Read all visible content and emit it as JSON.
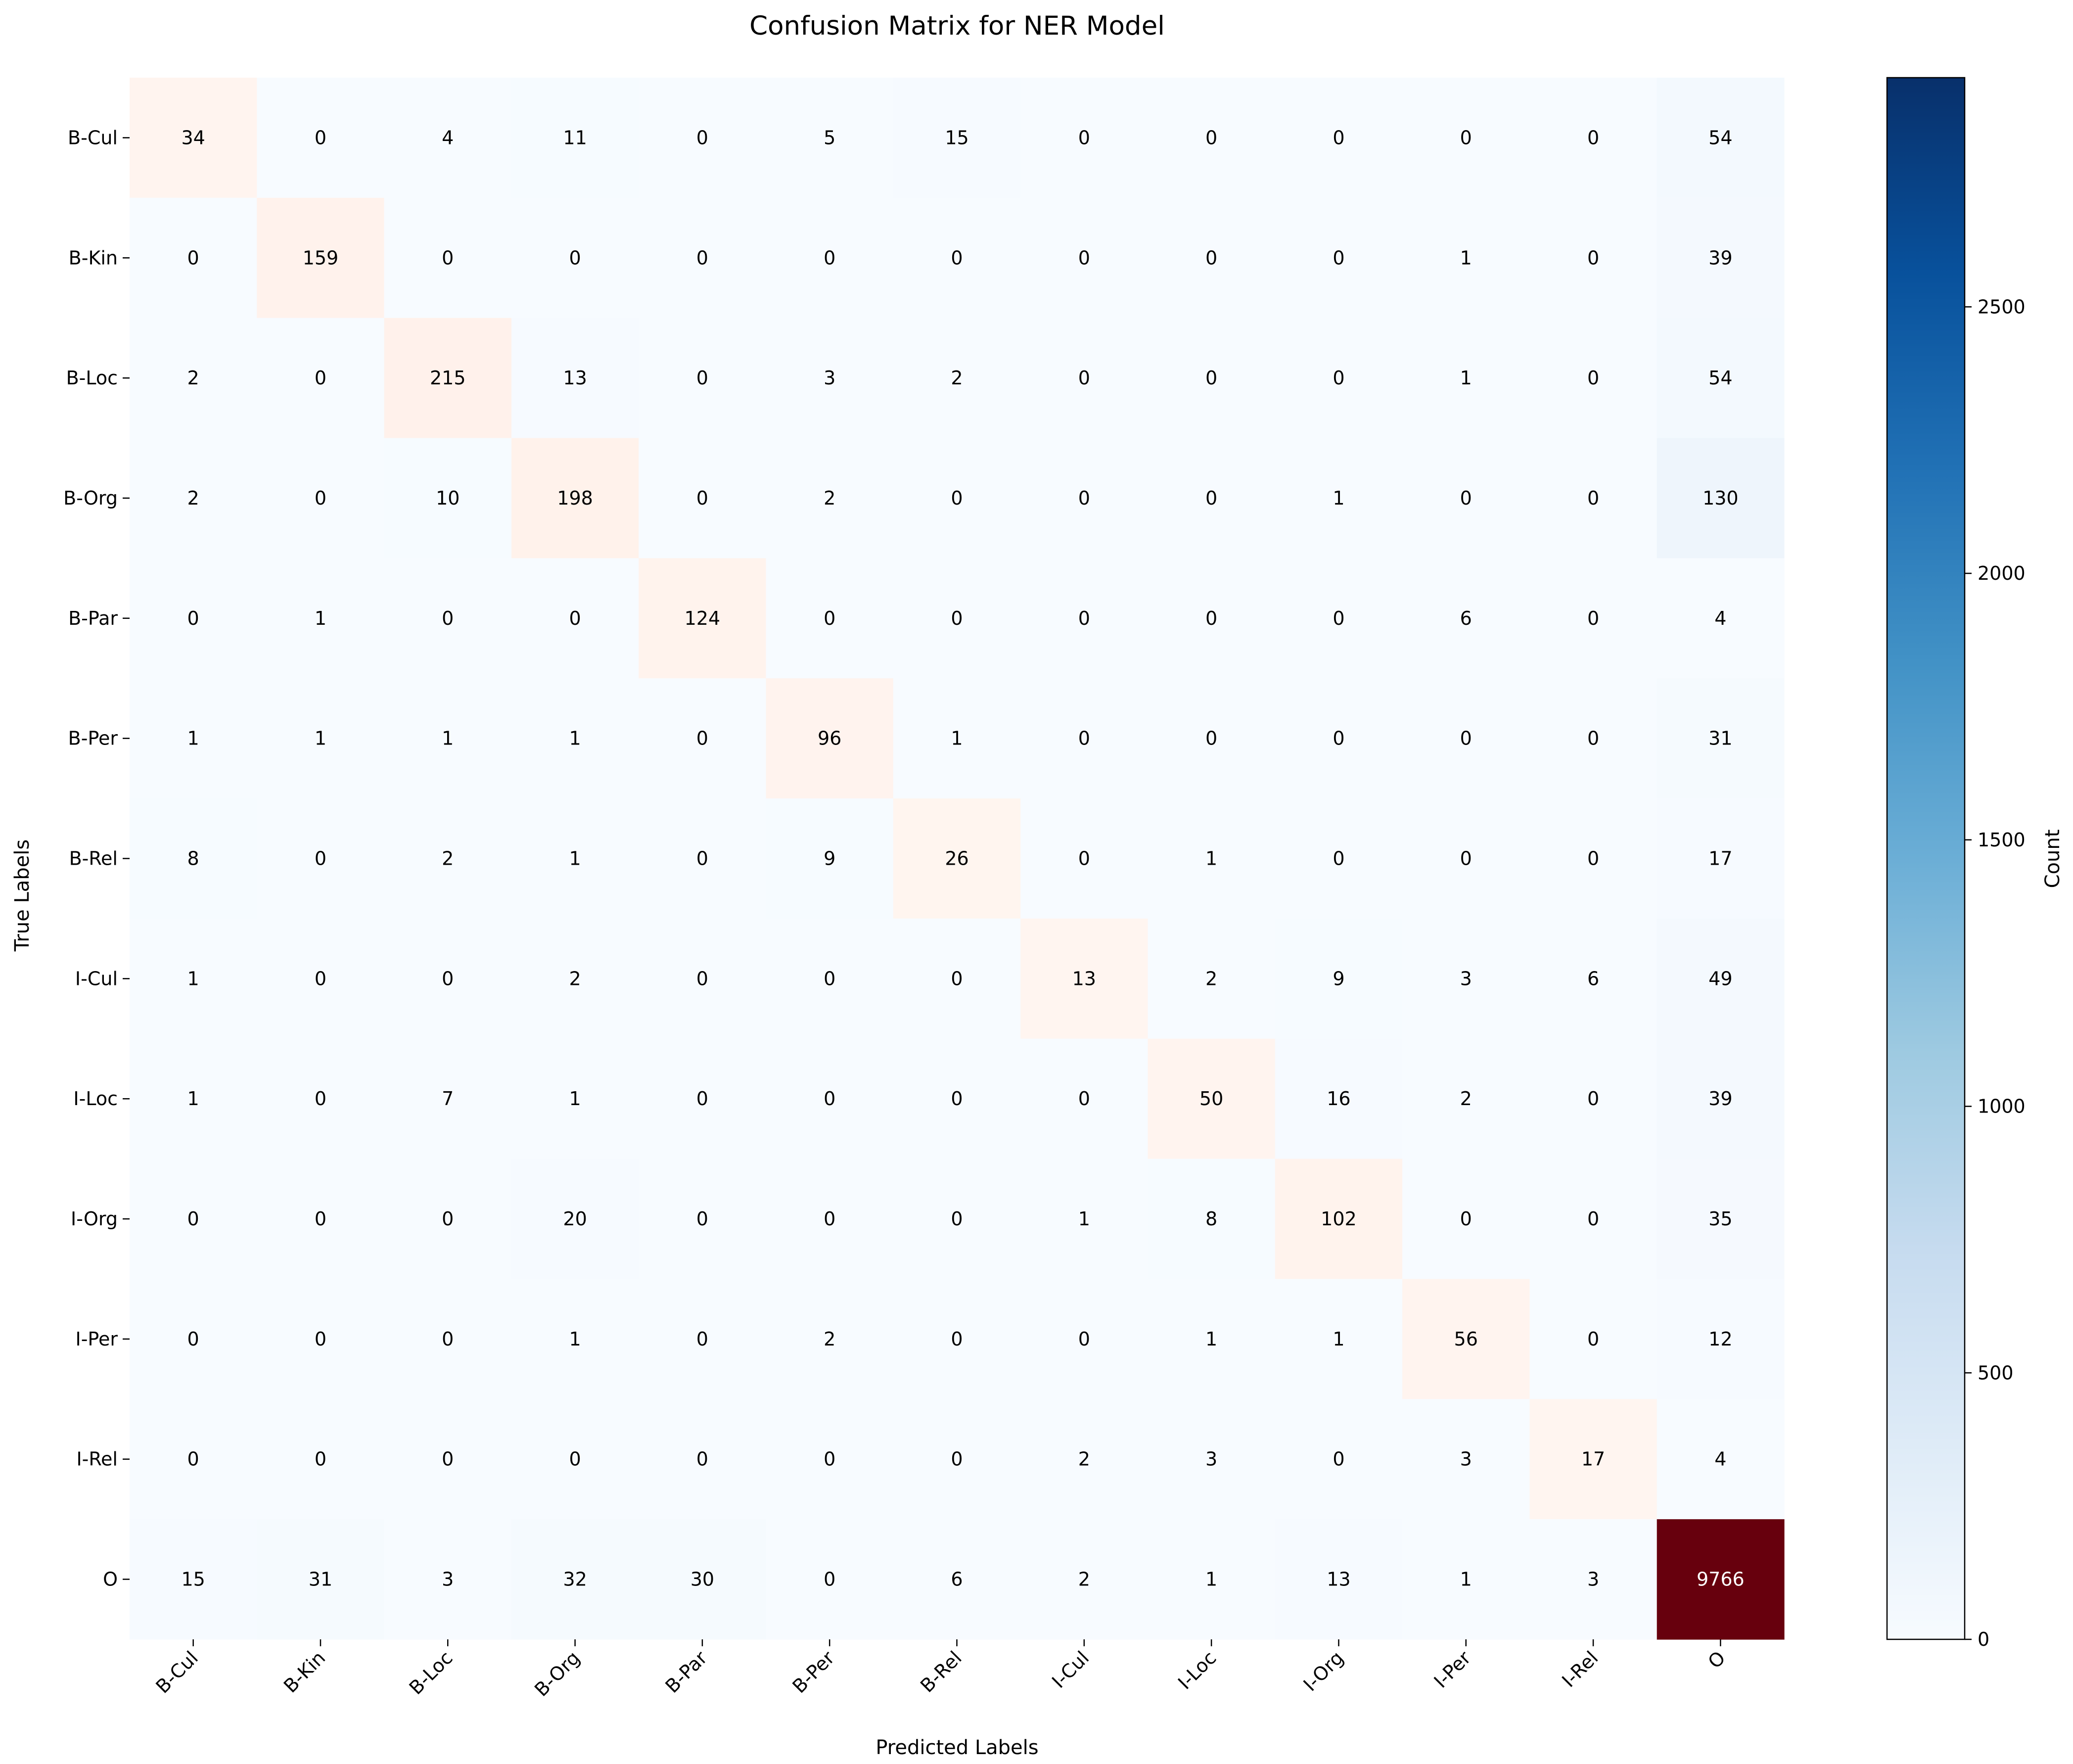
{
  "chart_data": {
    "type": "heatmap",
    "title": "Confusion Matrix for NER Model",
    "xlabel": "Predicted Labels",
    "ylabel": "True Labels",
    "x_categories": [
      "B-Cul",
      "B-Kin",
      "B-Loc",
      "B-Org",
      "B-Par",
      "B-Per",
      "B-Rel",
      "I-Cul",
      "I-Loc",
      "I-Org",
      "I-Per",
      "I-Rel",
      "O"
    ],
    "y_categories": [
      "B-Cul",
      "B-Kin",
      "B-Loc",
      "B-Org",
      "B-Par",
      "B-Per",
      "B-Rel",
      "I-Cul",
      "I-Loc",
      "I-Org",
      "I-Per",
      "I-Rel",
      "O"
    ],
    "values": [
      [
        34,
        0,
        4,
        11,
        0,
        5,
        15,
        0,
        0,
        0,
        0,
        0,
        54
      ],
      [
        0,
        159,
        0,
        0,
        0,
        0,
        0,
        0,
        0,
        0,
        1,
        0,
        39
      ],
      [
        2,
        0,
        215,
        13,
        0,
        3,
        2,
        0,
        0,
        0,
        1,
        0,
        54
      ],
      [
        2,
        0,
        10,
        198,
        0,
        2,
        0,
        0,
        0,
        1,
        0,
        0,
        130
      ],
      [
        0,
        1,
        0,
        0,
        124,
        0,
        0,
        0,
        0,
        0,
        6,
        0,
        4
      ],
      [
        1,
        1,
        1,
        1,
        0,
        96,
        1,
        0,
        0,
        0,
        0,
        0,
        31
      ],
      [
        8,
        0,
        2,
        1,
        0,
        9,
        26,
        0,
        1,
        0,
        0,
        0,
        17
      ],
      [
        1,
        0,
        0,
        2,
        0,
        0,
        0,
        13,
        2,
        9,
        3,
        6,
        49
      ],
      [
        1,
        0,
        7,
        1,
        0,
        0,
        0,
        0,
        50,
        16,
        2,
        0,
        39
      ],
      [
        0,
        0,
        0,
        20,
        0,
        0,
        0,
        1,
        8,
        102,
        0,
        0,
        35
      ],
      [
        0,
        0,
        0,
        1,
        0,
        2,
        0,
        0,
        1,
        1,
        56,
        0,
        12
      ],
      [
        0,
        0,
        0,
        0,
        0,
        0,
        0,
        2,
        3,
        0,
        3,
        17,
        4
      ],
      [
        15,
        31,
        3,
        32,
        30,
        0,
        6,
        2,
        1,
        13,
        1,
        3,
        9766
      ]
    ],
    "diagonal_colormap": "Reds",
    "offdiagonal_colormap": "Blues",
    "colorbar": {
      "label": "Count",
      "range": [
        0,
        2930
      ],
      "ticks": [
        0,
        500,
        1000,
        1500,
        2000,
        2500
      ]
    },
    "grid": false,
    "colors": {
      "diagonal_peak": "#67000d",
      "diagonal_low": "#fff5f0",
      "offdiag_low": "#f7fbff",
      "offdiag_high": "#08306b"
    }
  }
}
